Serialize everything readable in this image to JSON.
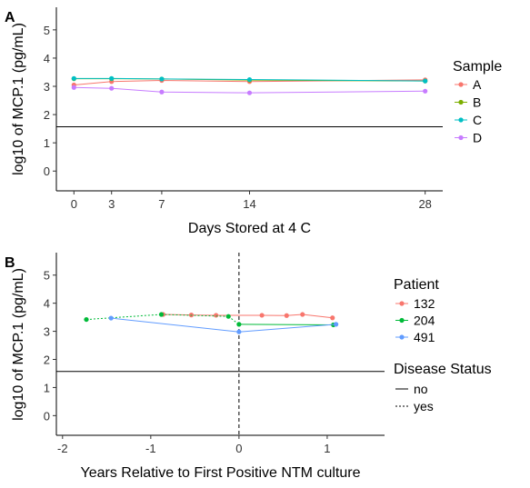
{
  "chart_data": [
    {
      "type": "line",
      "panel_tag": "A",
      "xlabel": "Days Stored at 4 C",
      "ylabel": "log10 of MCP.1 (pg/mL)",
      "xlim": [
        -1.4,
        29.4
      ],
      "ylim": [
        -0.7,
        5.8
      ],
      "x_ticks": [
        0,
        3,
        7,
        14,
        28
      ],
      "y_ticks": [
        0,
        1,
        2,
        3,
        4,
        5
      ],
      "grid": false,
      "legend_position": "right",
      "hline": 1.57,
      "legend": {
        "title": "Sample",
        "entries": [
          "A",
          "B",
          "C",
          "D"
        ]
      },
      "series": [
        {
          "name": "A",
          "color": "#F8766D",
          "x": [
            0,
            3,
            7,
            14,
            28
          ],
          "y": [
            3.05,
            3.17,
            3.21,
            3.17,
            3.23
          ]
        },
        {
          "name": "B",
          "color": "#7CAE00",
          "x": [
            0,
            3,
            7,
            14,
            28
          ],
          "y": [
            3.27,
            3.27,
            3.26,
            3.22,
            3.19
          ]
        },
        {
          "name": "C",
          "color": "#00BFC4",
          "x": [
            0,
            3,
            7,
            14,
            28
          ],
          "y": [
            3.28,
            3.28,
            3.26,
            3.24,
            3.19
          ]
        },
        {
          "name": "D",
          "color": "#C77CFF",
          "x": [
            0,
            3,
            7,
            14,
            28
          ],
          "y": [
            2.96,
            2.93,
            2.8,
            2.77,
            2.83
          ]
        }
      ]
    },
    {
      "type": "line",
      "panel_tag": "B",
      "xlabel": "Years Relative to First Positive NTM culture",
      "ylabel": "log10 of MCP.1 (pg/mL)",
      "xlim": [
        -2.07,
        1.65
      ],
      "ylim": [
        -0.7,
        5.8
      ],
      "x_ticks": [
        -2,
        -1,
        0,
        1
      ],
      "y_ticks": [
        0,
        1,
        2,
        3,
        4,
        5
      ],
      "grid": false,
      "legend_position": "right",
      "hline": 1.57,
      "vline": 0,
      "legend": {
        "title": "Patient",
        "entries": [
          "132",
          "204",
          "491"
        ]
      },
      "legend2": {
        "title": "Disease Status",
        "entries": [
          "no",
          "yes"
        ]
      },
      "series": [
        {
          "name": "132",
          "color": "#F8766D",
          "x": [
            -0.86,
            -0.54,
            -0.26,
            0.26,
            0.54,
            0.72,
            1.06
          ],
          "y": [
            3.6,
            3.58,
            3.57,
            3.57,
            3.56,
            3.6,
            3.48
          ]
        },
        {
          "name": "204",
          "color": "#00BA38",
          "x": [
            -1.73,
            -0.88,
            -0.12,
            0.0,
            1.07
          ],
          "y": [
            3.42,
            3.6,
            3.53,
            3.25,
            3.23
          ]
        },
        {
          "name": "491",
          "color": "#619CFF",
          "x": [
            -1.45,
            0.0,
            1.1
          ],
          "y": [
            3.47,
            2.98,
            3.25
          ]
        }
      ]
    }
  ]
}
